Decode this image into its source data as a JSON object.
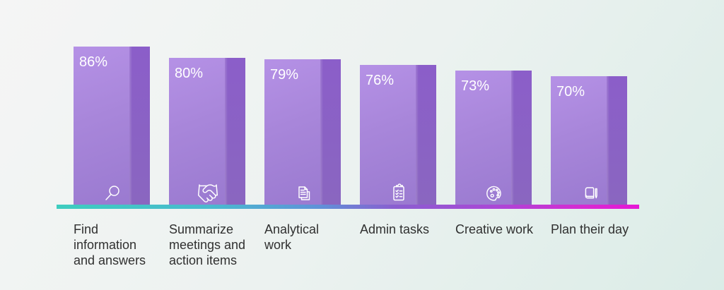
{
  "chart_data": {
    "type": "bar",
    "title": "",
    "categories": [
      "Find information and answers",
      "Summarize meetings and action items",
      "Analytical work",
      "Admin tasks",
      "Creative work",
      "Plan their day"
    ],
    "values": [
      86,
      80,
      79,
      76,
      73,
      70
    ],
    "value_labels": [
      "86%",
      "80%",
      "79%",
      "76%",
      "73%",
      "70%"
    ],
    "category_lines": [
      "Find\ninformation\nand answers",
      "Summarize\nmeetings and\naction items",
      "Analytical\nwork",
      "Admin tasks",
      "Creative work",
      "Plan their day"
    ],
    "icons": [
      "search",
      "handshake",
      "documents",
      "checklist",
      "palette",
      "book-pencil"
    ],
    "ylim": [
      0,
      100
    ],
    "legend": "none",
    "grid": "off",
    "colors": {
      "bar_face_top": "#b591e6",
      "bar_face_bottom": "#9a7ad0",
      "bar_side_top": "#8b5ec9",
      "bar_side_bottom": "#8a66c0",
      "value_text": "#ffffff",
      "label_text": "#303030",
      "baseline_gradient": [
        "#3ecdbf",
        "#4ab9cf",
        "#5f92d8",
        "#8a5fd0",
        "#aa48d6",
        "#d829d2",
        "#e618d6"
      ],
      "background_gradient": [
        "#f5f5f5",
        "#dbece7"
      ]
    }
  }
}
